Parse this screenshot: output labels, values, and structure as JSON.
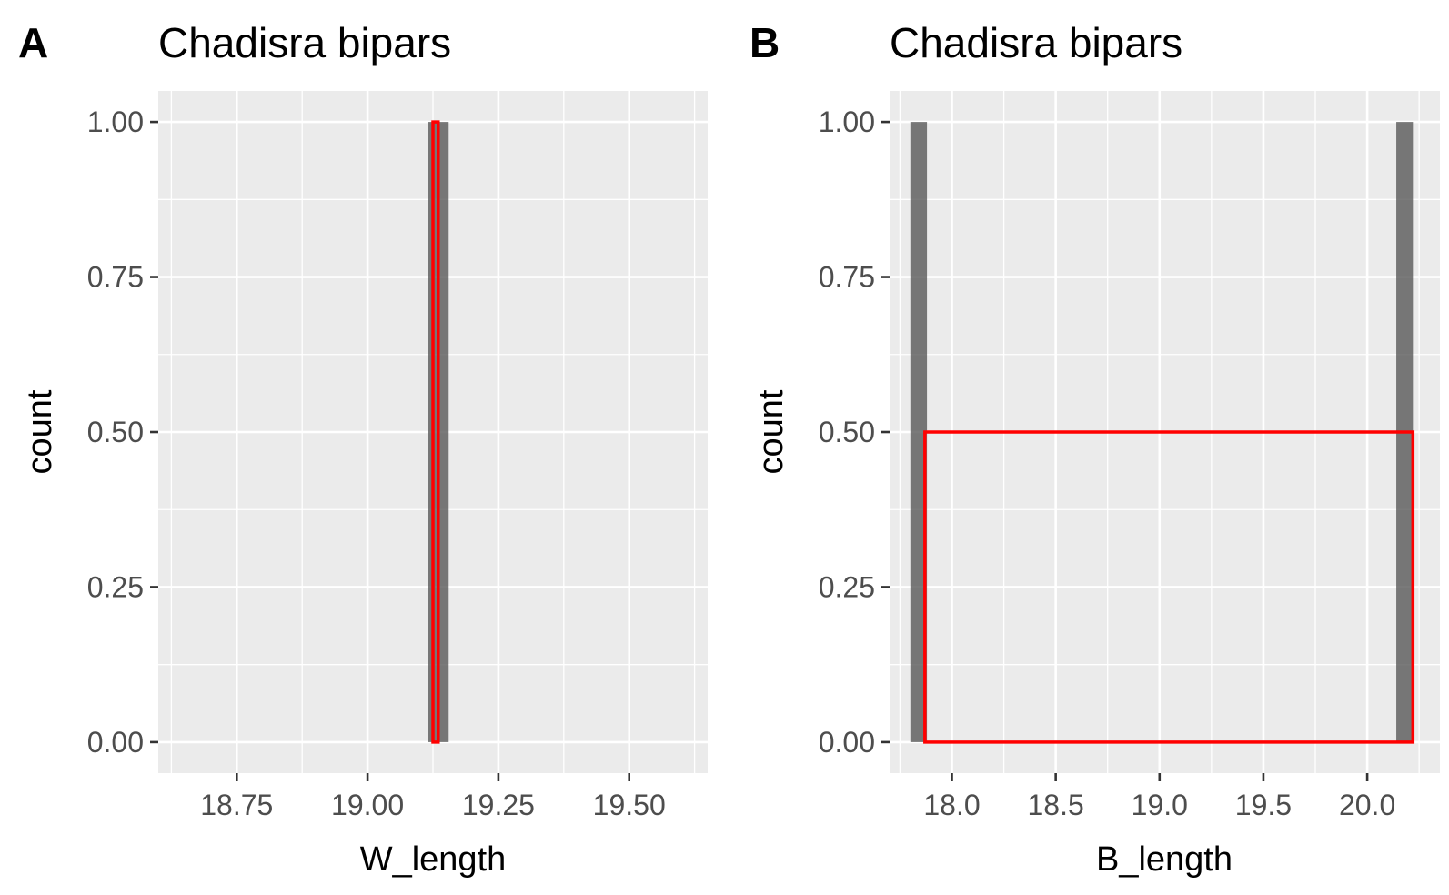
{
  "chart_data": [
    {
      "type": "bar",
      "panel_tag": "A",
      "title": "Chadisra bipars",
      "xlabel": "W_length",
      "ylabel": "count",
      "xlim": [
        18.6,
        19.65
      ],
      "ylim": [
        -0.05,
        1.05
      ],
      "x_ticks": [
        "18.75",
        "19.00",
        "19.25",
        "19.50"
      ],
      "y_ticks": [
        "0.00",
        "0.25",
        "0.50",
        "0.75",
        "1.00"
      ],
      "grid": true,
      "bars": [
        {
          "xmin": 19.115,
          "xmax": 19.155,
          "count": 1
        }
      ],
      "outline": [
        {
          "xmin": 19.125,
          "xmax": 19.135,
          "value": 1
        }
      ],
      "colors": {
        "bars": "#595959",
        "outline": "#ff0000",
        "panel_background": "#ebebeb"
      }
    },
    {
      "type": "bar",
      "panel_tag": "B",
      "title": "Chadisra bipars",
      "xlabel": "B_length",
      "ylabel": "count",
      "xlim": [
        17.7,
        20.35
      ],
      "ylim": [
        -0.05,
        1.05
      ],
      "x_ticks": [
        "18.0",
        "18.5",
        "19.0",
        "19.5",
        "20.0"
      ],
      "y_ticks": [
        "0.00",
        "0.25",
        "0.50",
        "0.75",
        "1.00"
      ],
      "grid": true,
      "bars": [
        {
          "xmin": 17.8,
          "xmax": 17.88,
          "count": 1
        },
        {
          "xmin": 20.14,
          "xmax": 20.22,
          "count": 1
        }
      ],
      "outline": [
        {
          "xmin": 17.87,
          "xmax": 20.22,
          "value": 0.5
        }
      ],
      "colors": {
        "bars": "#595959",
        "outline": "#ff0000",
        "panel_background": "#ebebeb"
      }
    }
  ]
}
